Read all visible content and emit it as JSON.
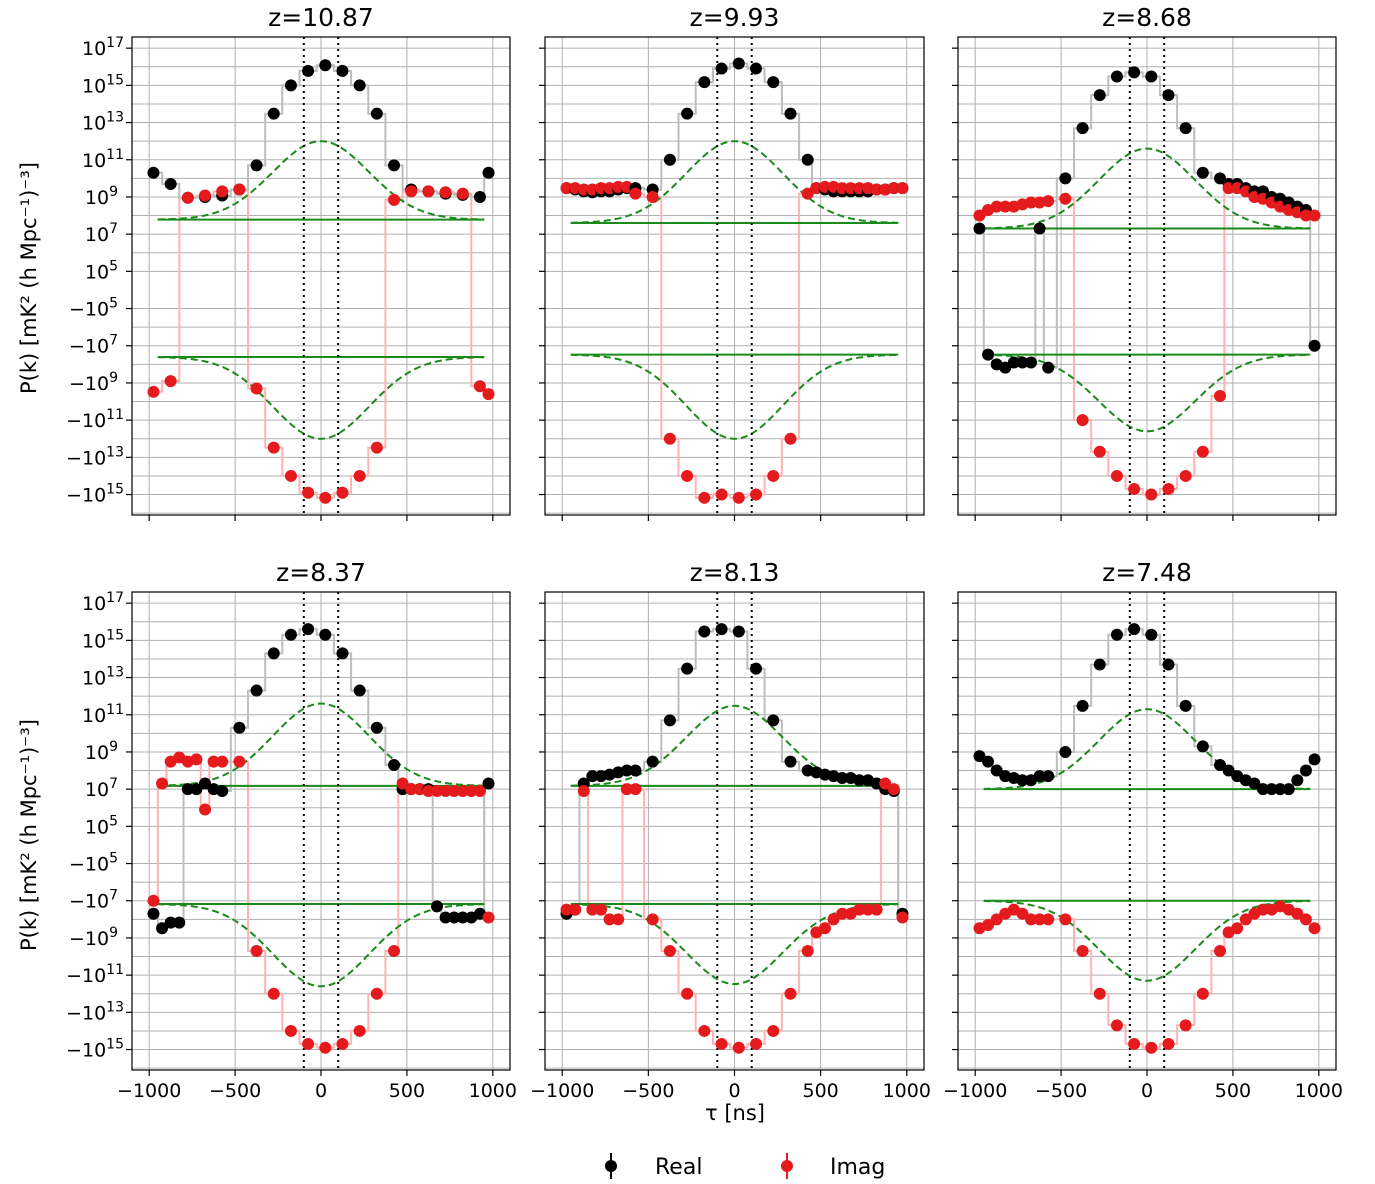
{
  "figure": {
    "ylabel": "P(k) [mK² (h Mpc⁻¹)⁻³]",
    "xlabel": "τ [ns]",
    "xticks": [
      "−1000",
      "−500",
      "0",
      "500",
      "1000"
    ],
    "yticks": [
      "10^17",
      "10^15",
      "10^13",
      "10^11",
      "10^9",
      "10^7",
      "10^5",
      "−10^5",
      "−10^7",
      "−10^9",
      "−10^11",
      "−10^13",
      "−10^15"
    ],
    "legend": [
      {
        "label": "Real",
        "color": "#000000"
      },
      {
        "label": "Imag",
        "color": "#e41a1c"
      }
    ],
    "colors": {
      "real": "#000000",
      "imag": "#e41a1c",
      "model": "#1a8a1a",
      "grid": "#b0b0b0",
      "real_band": "#bdbdbd",
      "imag_band": "#ffb3b3",
      "horizon": "#000000"
    }
  },
  "chart_data": [
    {
      "type": "scatter",
      "title": "z=10.87",
      "x": [
        -975,
        -875,
        -775,
        -675,
        -575,
        -475,
        -375,
        -275,
        -175,
        -75,
        25,
        125,
        225,
        325,
        425,
        525,
        625,
        725,
        825,
        925,
        975
      ],
      "xlim": [
        -1100,
        1100
      ],
      "scale": "symlog",
      "horizon_lines": [
        -100,
        100
      ],
      "series": [
        {
          "name": "Real",
          "values": [
            20000000000.0,
            5000000000.0,
            900000000.0,
            1000000000.0,
            1200000000.0,
            2500000000.0,
            50000000000.0,
            30000000000000.0,
            1000000000000000.0,
            6000000000000000.0,
            1.2e+16,
            6000000000000000.0,
            1000000000000000.0,
            30000000000000.0,
            50000000000.0,
            2500000000.0,
            2000000000.0,
            1500000000.0,
            1300000000.0,
            1000000000.0,
            20000000000.0
          ]
        },
        {
          "name": "Imag",
          "values": [
            -3000000000.0,
            -800000000.0,
            900000000.0,
            1200000000.0,
            2000000000.0,
            2500000000.0,
            -2000000000.0,
            -3000000000000.0,
            -100000000000000.0,
            -800000000000000.0,
            -1500000000000000.0,
            -800000000000000.0,
            -100000000000000.0,
            -3000000000000.0,
            700000000.0,
            2000000000.0,
            2000000000.0,
            1800000000.0,
            1500000000.0,
            -1500000000.0,
            -4000000000.0
          ]
        }
      ],
      "model_dashed": "peaks at 1e12 near tau=0, falls to about 6e7 by |tau|=600",
      "noise_floor": [
        60000000.0,
        -40000000.0
      ]
    },
    {
      "type": "scatter",
      "title": "z=9.93",
      "x": [
        -975,
        -925,
        -875,
        -825,
        -775,
        -725,
        -675,
        -625,
        -575,
        -475,
        -375,
        -275,
        -175,
        -75,
        25,
        125,
        225,
        325,
        425,
        475,
        525,
        575,
        625,
        675,
        725,
        775,
        825,
        875,
        925,
        975
      ],
      "xlim": [
        -1100,
        1100
      ],
      "scale": "symlog",
      "horizon_lines": [
        -100,
        100
      ],
      "series": [
        {
          "name": "Real",
          "values": [
            3000000000.0,
            2500000000.0,
            2000000000.0,
            1800000000.0,
            2000000000.0,
            2000000000.0,
            2500000000.0,
            3000000000.0,
            3000000000.0,
            2500000000.0,
            100000000000.0,
            30000000000000.0,
            1500000000000000.0,
            8000000000000000.0,
            1.5e+16,
            8000000000000000.0,
            1500000000000000.0,
            30000000000000.0,
            100000000000.0,
            3000000000.0,
            2500000000.0,
            2000000000.0,
            2000000000.0,
            2000000000.0,
            2000000000.0,
            2000000000.0,
            2500000000.0,
            2500000000.0,
            3000000000.0,
            3000000000.0
          ]
        },
        {
          "name": "Imag",
          "values": [
            3000000000.0,
            3000000000.0,
            2500000000.0,
            2500000000.0,
            3000000000.0,
            3000000000.0,
            3500000000.0,
            3500000000.0,
            1500000000.0,
            1000000000.0,
            -1000000000000.0,
            -100000000000000.0,
            -1500000000000000.0,
            -1000000000000000.0,
            -1500000000000000.0,
            -1000000000000000.0,
            -100000000000000.0,
            -1000000000000.0,
            1500000000.0,
            3000000000.0,
            3500000000.0,
            3500000000.0,
            3000000000.0,
            3000000000.0,
            3000000000.0,
            3000000000.0,
            2500000000.0,
            2500000000.0,
            3000000000.0,
            3000000000.0
          ]
        }
      ],
      "model_dashed": "peaks at 1e12 near tau=0, falls to about 5e7 by |tau|=600",
      "noise_floor": [
        40000000.0,
        -30000000.0
      ]
    },
    {
      "type": "scatter",
      "title": "z=8.68",
      "x": [
        -975,
        -925,
        -875,
        -825,
        -775,
        -725,
        -675,
        -625,
        -575,
        -475,
        -375,
        -275,
        -175,
        -75,
        25,
        125,
        225,
        325,
        425,
        475,
        525,
        575,
        625,
        675,
        725,
        775,
        825,
        875,
        925,
        975
      ],
      "xlim": [
        -1100,
        1100
      ],
      "scale": "symlog",
      "horizon_lines": [
        -100,
        100
      ],
      "series": [
        {
          "name": "Real",
          "values": [
            20000000.0,
            -30000000.0,
            -100000000.0,
            -150000000.0,
            -80000000.0,
            -80000000.0,
            -80000000.0,
            20000000.0,
            -150000000.0,
            10000000000.0,
            5000000000000.0,
            300000000000000.0,
            3000000000000000.0,
            5000000000000000.0,
            3000000000000000.0,
            300000000000000.0,
            5000000000000.0,
            20000000000.0,
            10000000000.0,
            5000000000.0,
            5000000000.0,
            3000000000.0,
            2000000000.0,
            2000000000.0,
            1000000000.0,
            800000000.0,
            500000000.0,
            300000000.0,
            200000000.0,
            -10000000.0
          ]
        },
        {
          "name": "Imag",
          "values": [
            100000000.0,
            200000000.0,
            300000000.0,
            300000000.0,
            300000000.0,
            400000000.0,
            500000000.0,
            500000000.0,
            600000000.0,
            800000000.0,
            -100000000000.0,
            -5000000000000.0,
            -100000000000000.0,
            -500000000000000.0,
            -1000000000000000.0,
            -500000000000000.0,
            -100000000000000.0,
            -5000000000000.0,
            -5000000000.0,
            3000000000.0,
            3000000000.0,
            2000000000.0,
            1000000000.0,
            800000000.0,
            500000000.0,
            300000000.0,
            200000000.0,
            150000000.0,
            100000000.0,
            100000000.0
          ]
        }
      ],
      "model_dashed": "peaks at 4e11 near tau=0, falls to about 3e7 by |tau|=600",
      "noise_floor": [
        20000000.0,
        -30000000.0
      ]
    },
    {
      "type": "scatter",
      "title": "z=8.37",
      "x": [
        -975,
        -925,
        -875,
        -825,
        -775,
        -725,
        -675,
        -625,
        -575,
        -475,
        -375,
        -275,
        -175,
        -75,
        25,
        125,
        225,
        325,
        425,
        475,
        525,
        575,
        625,
        675,
        725,
        775,
        825,
        875,
        925,
        975
      ],
      "xlim": [
        -1100,
        1100
      ],
      "scale": "symlog",
      "horizon_lines": [
        -100,
        100
      ],
      "series": [
        {
          "name": "Real",
          "values": [
            -50000000.0,
            -300000000.0,
            -150000000.0,
            -150000000.0,
            10000000.0,
            10000000.0,
            20000000.0,
            10000000.0,
            8000000.0,
            20000000000.0,
            2000000000000.0,
            200000000000000.0,
            2000000000000000.0,
            4000000000000000.0,
            2000000000000000.0,
            200000000000000.0,
            2000000000000.0,
            20000000000.0,
            200000000.0,
            10000000.0,
            10000000.0,
            10000000.0,
            10000000.0,
            -20000000.0,
            -80000000.0,
            -80000000.0,
            -80000000.0,
            -80000000.0,
            -50000000.0,
            20000000.0
          ]
        },
        {
          "name": "Imag",
          "values": [
            -10000000.0,
            20000000.0,
            300000000.0,
            500000000.0,
            300000000.0,
            400000000.0,
            800000.0,
            300000000.0,
            300000000.0,
            300000000.0,
            -5000000000.0,
            -1000000000000.0,
            -100000000000000.0,
            -500000000000000.0,
            -800000000000000.0,
            -500000000000000.0,
            -100000000000000.0,
            -1000000000000.0,
            -5000000000.0,
            20000000.0,
            10000000.0,
            10000000.0,
            8000000.0,
            8000000.0,
            8000000.0,
            8000000.0,
            8000000.0,
            8000000.0,
            8000000.0,
            -80000000.0
          ]
        }
      ],
      "model_dashed": "peaks at 4e11 near tau=0, falls to about 1.5e7 by |tau|=600",
      "noise_floor": [
        15000000.0,
        -15000000.0
      ]
    },
    {
      "type": "scatter",
      "title": "z=8.13",
      "x": [
        -975,
        -925,
        -875,
        -825,
        -775,
        -725,
        -675,
        -625,
        -575,
        -475,
        -375,
        -275,
        -175,
        -75,
        25,
        125,
        225,
        325,
        425,
        475,
        525,
        575,
        625,
        675,
        725,
        775,
        825,
        875,
        925,
        975
      ],
      "xlim": [
        -1100,
        1100
      ],
      "scale": "symlog",
      "horizon_lines": [
        -100,
        100
      ],
      "series": [
        {
          "name": "Real",
          "values": [
            -50000000.0,
            -30000000.0,
            20000000.0,
            50000000.0,
            50000000.0,
            60000000.0,
            80000000.0,
            100000000.0,
            100000000.0,
            300000000.0,
            50000000000.0,
            30000000000000.0,
            3000000000000000.0,
            4000000000000000.0,
            3000000000000000.0,
            30000000000000.0,
            50000000000.0,
            300000000.0,
            100000000.0,
            80000000.0,
            60000000.0,
            50000000.0,
            40000000.0,
            40000000.0,
            30000000.0,
            30000000.0,
            20000000.0,
            10000000.0,
            8000000.0,
            -50000000.0
          ]
        },
        {
          "name": "Imag",
          "values": [
            -30000000.0,
            -30000000.0,
            8000000.0,
            -30000000.0,
            -30000000.0,
            -100000000.0,
            -100000000.0,
            10000000.0,
            10000000.0,
            -100000000.0,
            -5000000000.0,
            -1000000000000.0,
            -100000000000000.0,
            -500000000000000.0,
            -800000000000000.0,
            -500000000000000.0,
            -100000000000000.0,
            -1000000000000.0,
            -5000000000.0,
            -500000000.0,
            -300000000.0,
            -100000000.0,
            -50000000.0,
            -50000000.0,
            -30000000.0,
            -30000000.0,
            -30000000.0,
            20000000.0,
            10000000.0,
            -80000000.0
          ]
        }
      ],
      "model_dashed": "peaks at 3e11 near tau=0, falls to about 1.5e7 by |tau|=600",
      "noise_floor": [
        15000000.0,
        -15000000.0
      ]
    },
    {
      "type": "scatter",
      "title": "z=7.48",
      "x": [
        -975,
        -925,
        -875,
        -825,
        -775,
        -725,
        -675,
        -625,
        -575,
        -475,
        -375,
        -275,
        -175,
        -75,
        25,
        125,
        225,
        325,
        425,
        475,
        525,
        575,
        625,
        675,
        725,
        775,
        825,
        875,
        925,
        975
      ],
      "xlim": [
        -1100,
        1100
      ],
      "scale": "symlog",
      "horizon_lines": [
        -100,
        100
      ],
      "series": [
        {
          "name": "Real",
          "values": [
            600000000.0,
            300000000.0,
            100000000.0,
            50000000.0,
            40000000.0,
            30000000.0,
            30000000.0,
            50000000.0,
            50000000.0,
            1000000000.0,
            300000000000.0,
            50000000000000.0,
            2000000000000000.0,
            4000000000000000.0,
            2000000000000000.0,
            50000000000000.0,
            300000000000.0,
            2000000000.0,
            200000000.0,
            100000000.0,
            50000000.0,
            30000000.0,
            20000000.0,
            10000000.0,
            10000000.0,
            10000000.0,
            10000000.0,
            30000000.0,
            100000000.0,
            400000000.0
          ]
        },
        {
          "name": "Imag",
          "values": [
            -300000000.0,
            -200000000.0,
            -100000000.0,
            -50000000.0,
            -30000000.0,
            -50000000.0,
            -100000000.0,
            -100000000.0,
            -100000000.0,
            -100000000.0,
            -5000000000.0,
            -1000000000000.0,
            -50000000000000.0,
            -500000000000000.0,
            -800000000000000.0,
            -500000000000000.0,
            -50000000000000.0,
            -1000000000000.0,
            -5000000000.0,
            -500000000.0,
            -300000000.0,
            -100000000.0,
            -50000000.0,
            -30000000.0,
            -30000000.0,
            -20000000.0,
            -30000000.0,
            -50000000.0,
            -100000000.0,
            -300000000.0
          ]
        }
      ],
      "model_dashed": "peaks at 2e11 near tau=0, falls to about 1e7 by |tau|=600",
      "noise_floor": [
        10000000.0,
        -10000000.0
      ]
    }
  ]
}
